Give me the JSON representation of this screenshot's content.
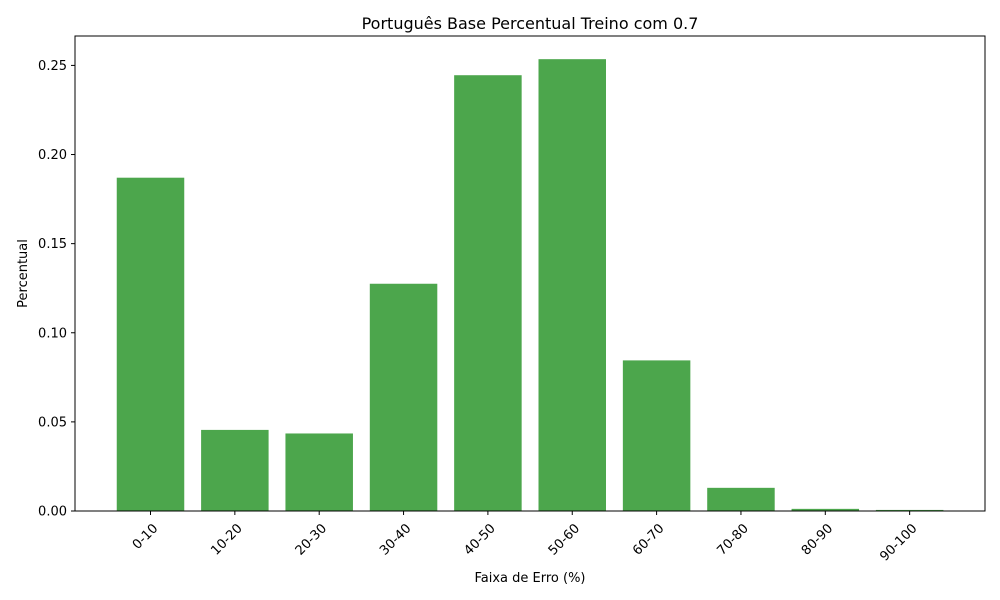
{
  "chart_data": {
    "type": "bar",
    "title": "Português Base Percentual Treino com 0.7",
    "xlabel": "Faixa de Erro (%)",
    "ylabel": "Percentual",
    "categories": [
      "0-10",
      "10-20",
      "20-30",
      "30-40",
      "40-50",
      "50-60",
      "60-70",
      "70-80",
      "80-90",
      "90-100"
    ],
    "values": [
      0.187,
      0.0455,
      0.0435,
      0.1275,
      0.2445,
      0.2535,
      0.0845,
      0.013,
      0.0012,
      0.0006
    ],
    "ylim": [
      0,
      0.2665
    ],
    "yticks": [
      0.0,
      0.05,
      0.1,
      0.15,
      0.2,
      0.25
    ],
    "ytick_labels": [
      "0.00",
      "0.05",
      "0.10",
      "0.15",
      "0.20",
      "0.25"
    ],
    "bar_color": "#4ca64c",
    "grid": false
  }
}
